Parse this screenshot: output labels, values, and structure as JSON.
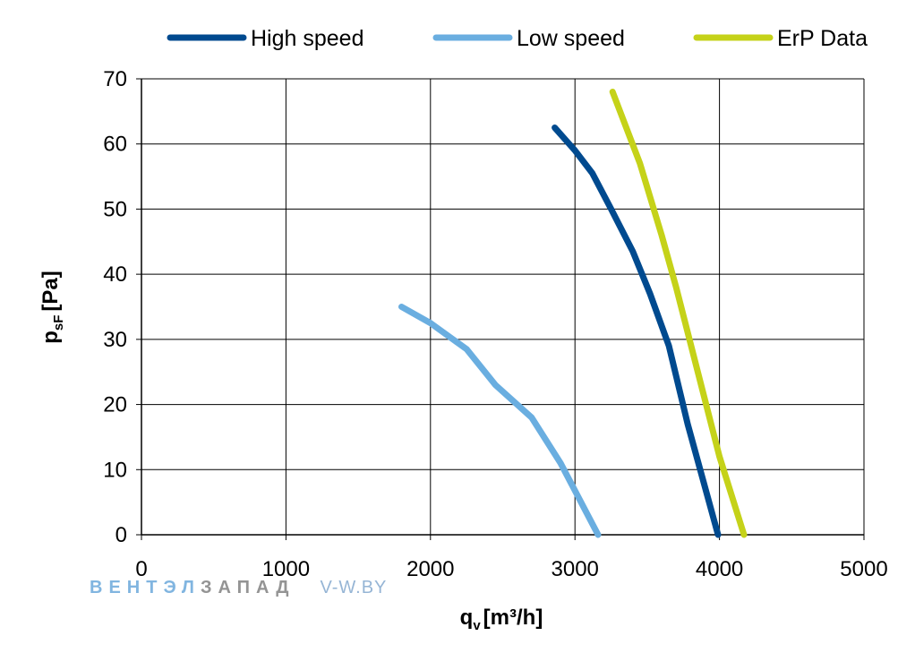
{
  "chart_data": {
    "type": "line",
    "title": "",
    "xlabel": "q",
    "xlabel_sub": "v",
    "xlabel_unit": "[m³/h]",
    "ylabel": "p",
    "ylabel_sub": "sF",
    "ylabel_unit": "[Pa]",
    "xlim": [
      0,
      5000
    ],
    "ylim": [
      0,
      70
    ],
    "x_ticks": [
      "0",
      "1000",
      "2000",
      "3000",
      "4000",
      "5000"
    ],
    "y_ticks": [
      "0",
      "10",
      "20",
      "30",
      "40",
      "50",
      "60",
      "70"
    ],
    "grid": true,
    "legend_position": "top",
    "series": [
      {
        "name": "High speed",
        "color": "#004a8f",
        "points": [
          [
            2860,
            62.5
          ],
          [
            3000,
            59
          ],
          [
            3120,
            55.5
          ],
          [
            3250,
            50
          ],
          [
            3400,
            43.5
          ],
          [
            3520,
            37
          ],
          [
            3650,
            29
          ],
          [
            3780,
            17
          ],
          [
            3990,
            0
          ]
        ]
      },
      {
        "name": "Low speed",
        "color": "#6aaee0",
        "points": [
          [
            1800,
            35
          ],
          [
            2000,
            32.5
          ],
          [
            2250,
            28.5
          ],
          [
            2450,
            23
          ],
          [
            2700,
            18
          ],
          [
            2900,
            11
          ],
          [
            3160,
            0
          ]
        ]
      },
      {
        "name": "ErP Data",
        "color": "#c5d219",
        "points": [
          [
            3260,
            68
          ],
          [
            3450,
            57
          ],
          [
            3600,
            46
          ],
          [
            3700,
            38
          ],
          [
            3850,
            25
          ],
          [
            4000,
            12
          ],
          [
            4170,
            0
          ]
        ]
      }
    ]
  },
  "watermark": {
    "part1": "ВЕНТЭЛ",
    "part2": "ЗАПАД",
    "part3": "V-W.BY"
  }
}
